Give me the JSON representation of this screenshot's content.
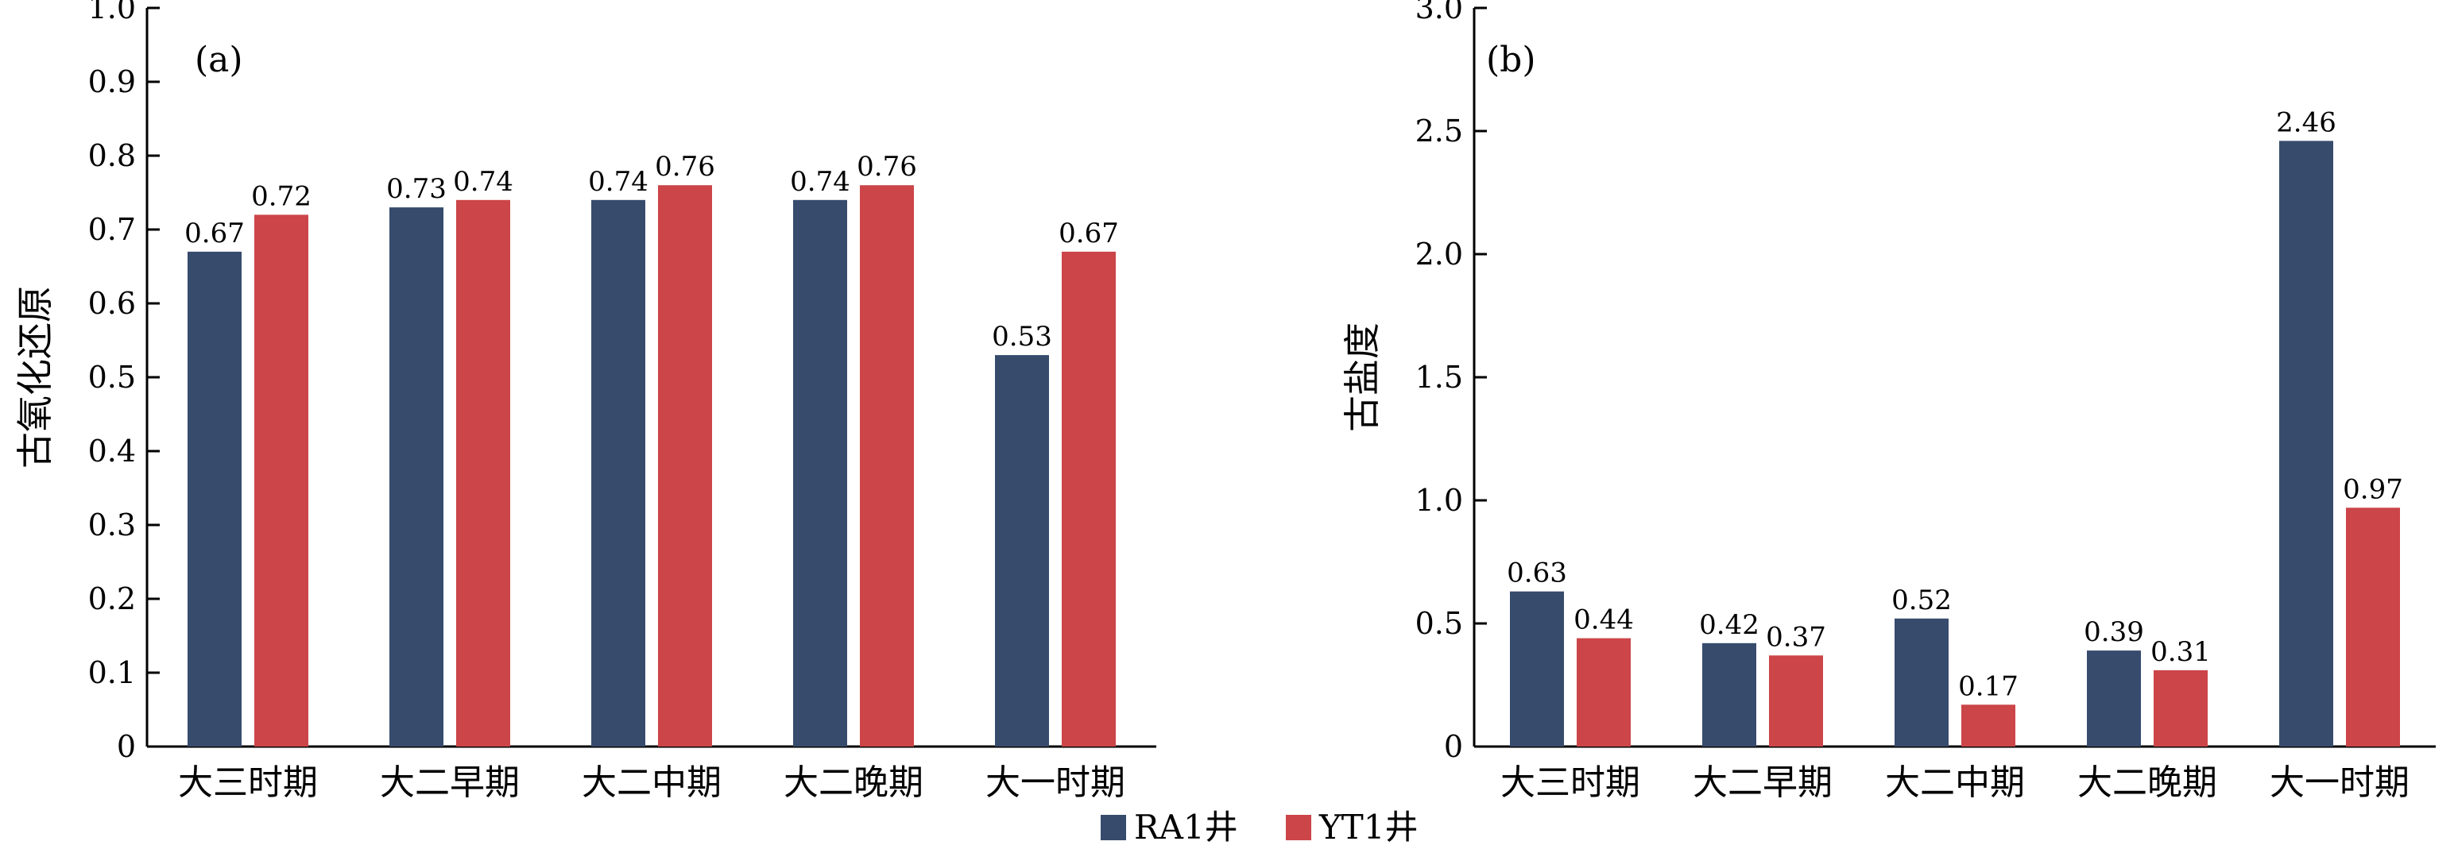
{
  "colors": {
    "RA1": "#374B6D",
    "YT1": "#CC4548"
  },
  "legend": [
    {
      "key": "RA1",
      "label": "RA1井"
    },
    {
      "key": "YT1",
      "label": "YT1井"
    }
  ],
  "chart_data": [
    {
      "type": "bar",
      "panel_label": "(a)",
      "ylabel": "古氧化还原",
      "xlabel": "",
      "ylim": [
        0,
        1.0
      ],
      "yticks": [
        "0",
        "0.1",
        "0.2",
        "0.3",
        "0.4",
        "0.5",
        "0.6",
        "0.7",
        "0.8",
        "0.9",
        "1.0"
      ],
      "categories": [
        "大三时期",
        "大二早期",
        "大二中期",
        "大二晚期",
        "大一时期"
      ],
      "series": [
        {
          "name": "RA1井",
          "values": [
            0.67,
            0.73,
            0.74,
            0.74,
            0.53
          ],
          "labels": [
            "0.67",
            "0.73",
            "0.74",
            "0.74",
            "0.53"
          ]
        },
        {
          "name": "YT1井",
          "values": [
            0.72,
            0.74,
            0.76,
            0.76,
            0.67
          ],
          "labels": [
            "0.72",
            "0.74",
            "0.76",
            "0.76",
            "0.67"
          ]
        }
      ],
      "grid": false
    },
    {
      "type": "bar",
      "panel_label": "(b)",
      "ylabel": "古盐度",
      "xlabel": "",
      "ylim": [
        0,
        3.0
      ],
      "yticks": [
        "0",
        "0.5",
        "1.0",
        "1.5",
        "2.0",
        "2.5",
        "3.0"
      ],
      "categories": [
        "大三时期",
        "大二早期",
        "大二中期",
        "大二晚期",
        "大一时期"
      ],
      "series": [
        {
          "name": "RA1井",
          "values": [
            0.63,
            0.42,
            0.52,
            0.39,
            2.46
          ],
          "labels": [
            "0.63",
            "0.42",
            "0.52",
            "0.39",
            "2.46"
          ]
        },
        {
          "name": "YT1井",
          "values": [
            0.44,
            0.37,
            0.17,
            0.31,
            0.97
          ],
          "labels": [
            "0.44",
            "0.37",
            "0.17",
            "0.31",
            "0.97"
          ]
        }
      ],
      "grid": false
    }
  ]
}
